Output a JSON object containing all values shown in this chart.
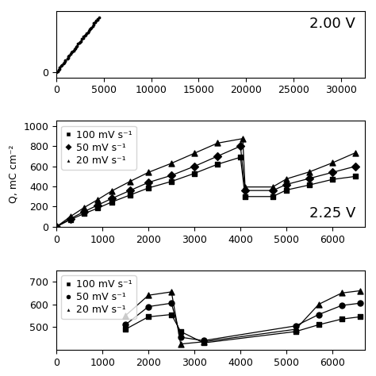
{
  "panel1": {
    "label": "2.00 V",
    "scatter_x": [
      0,
      100,
      200,
      300,
      400,
      500,
      600,
      700,
      800,
      900,
      1000,
      1100,
      1200,
      1300,
      1400,
      1500,
      1600,
      1700,
      1800,
      1900,
      2000,
      2100,
      2200,
      2300,
      2400,
      2500,
      2600,
      2700,
      2800,
      2900,
      3000,
      3100,
      3200,
      3300,
      3400,
      3500,
      3600,
      3700,
      3800,
      3900,
      4000,
      4100,
      4200,
      4300,
      4400,
      4500
    ],
    "scatter_y_slope": 0.012,
    "scatter_y_intercept": 0,
    "xlim": [
      0,
      32500
    ],
    "ylim": [
      -5,
      60
    ],
    "xticks": [
      0,
      5000,
      10000,
      15000,
      20000,
      25000,
      30000
    ],
    "yticks": [
      0
    ],
    "dot_size": 3
  },
  "panel2": {
    "label": "2.25 V",
    "series": [
      {
        "name": "100 mV s⁻¹",
        "marker": "s",
        "x": [
          0,
          300,
          600,
          900,
          1200,
          1600,
          2000,
          2500,
          3000,
          3500,
          4000,
          4100,
          4700,
          5000,
          5500,
          6000,
          6500
        ],
        "y": [
          0,
          70,
          130,
          185,
          245,
          315,
          385,
          450,
          530,
          620,
          690,
          300,
          300,
          365,
          415,
          470,
          500
        ]
      },
      {
        "name": "50 mV s⁻¹",
        "marker": "D",
        "x": [
          0,
          300,
          600,
          900,
          1200,
          1600,
          2000,
          2500,
          3000,
          3500,
          4000,
          4100,
          4700,
          5000,
          5500,
          6000,
          6500
        ],
        "y": [
          0,
          80,
          150,
          215,
          280,
          360,
          440,
          510,
          600,
          700,
          800,
          360,
          360,
          420,
          480,
          540,
          600
        ]
      },
      {
        "name": "20 mV s⁻¹",
        "marker": "^",
        "x": [
          0,
          300,
          600,
          900,
          1200,
          1600,
          2000,
          2500,
          3000,
          3500,
          4050,
          4100,
          4700,
          5000,
          5500,
          6000,
          6500
        ],
        "y": [
          0,
          100,
          190,
          270,
          355,
          450,
          540,
          630,
          730,
          830,
          875,
          395,
          395,
          475,
          545,
          635,
          735
        ]
      }
    ],
    "xlim": [
      0,
      6700
    ],
    "ylim": [
      0,
      1050
    ],
    "xticks": [
      0,
      1000,
      2000,
      3000,
      4000,
      5000,
      6000
    ],
    "yticks": [
      0,
      200,
      400,
      600,
      800,
      1000
    ],
    "ylabel": "Q, mC cm⁻²"
  },
  "panel3": {
    "label": "",
    "series": [
      {
        "name": "100 mV s⁻¹",
        "marker": "s",
        "x": [
          1500,
          2000,
          2500,
          2700,
          3200,
          5200,
          5700,
          6200,
          6600
        ],
        "y": [
          490,
          545,
          555,
          480,
          430,
          480,
          510,
          535,
          545
        ]
      },
      {
        "name": "50 mV s⁻¹",
        "marker": "o",
        "x": [
          1500,
          2000,
          2500,
          2700,
          3200,
          5200,
          5700,
          6200,
          6600
        ],
        "y": [
          510,
          590,
          605,
          455,
          440,
          505,
          555,
          595,
          605
        ]
      },
      {
        "name": "20 mV s⁻¹",
        "marker": "^",
        "x": [
          1500,
          2000,
          2500,
          2700,
          3200,
          5200,
          5700,
          6200,
          6600
        ],
        "y": [
          550,
          640,
          655,
          425,
          435,
          490,
          600,
          650,
          660
        ]
      }
    ],
    "xlim": [
      0,
      6700
    ],
    "ylim": [
      400,
      750
    ],
    "xticks": [
      0,
      1000,
      2000,
      3000,
      4000,
      5000,
      6000
    ],
    "yticks": [
      500,
      600,
      700
    ],
    "ylabel": ""
  },
  "marker_size": 5,
  "line_width": 0.9,
  "font_size": 9,
  "label_font_size": 13,
  "background_color": "#ffffff"
}
